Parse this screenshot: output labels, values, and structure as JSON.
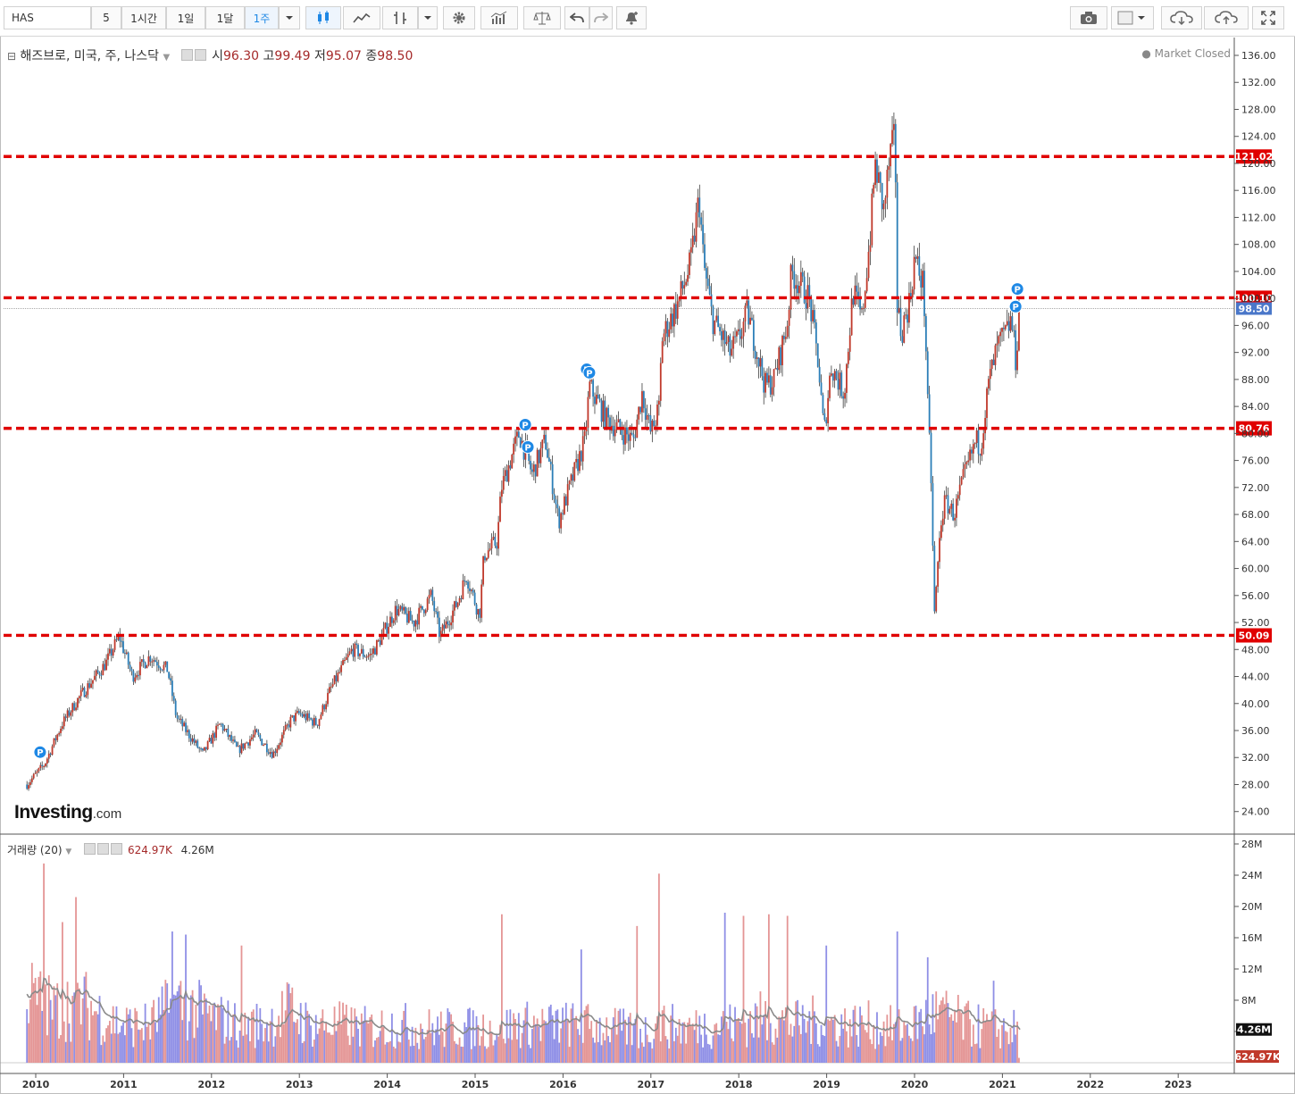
{
  "toolbar": {
    "symbol": "HAS",
    "intervals": [
      "5",
      "1시간",
      "1일",
      "1달",
      "1주"
    ],
    "selected_interval": "1주"
  },
  "legend": {
    "name": "해즈브로, 미국, 주, 나스닥",
    "open_label": "시",
    "open": "96.30",
    "high_label": "고",
    "high": "99.49",
    "low_label": "저",
    "low": "95.07",
    "close_label": "종",
    "close": "98.50",
    "market_status": "Market Closed"
  },
  "volume_legend": {
    "label": "거래량 (20)",
    "value": "624.97K",
    "ma_value": "4.26M"
  },
  "logo": {
    "main": "Investing",
    "suffix": ".com"
  },
  "colors": {
    "up": "#c0392b",
    "down": "#2c7fb8",
    "level_line": "#e00000",
    "price_tag": "#4a77c9",
    "vol_up": "#e49595",
    "vol_down": "#8f8fe6",
    "marker": "#1e88e5"
  },
  "chart_data": [
    {
      "type": "candlestick",
      "title": "해즈브로, 미국, 주, 나스닥",
      "x_range": [
        2009.9,
        2023.6
      ],
      "y_range": [
        21.5,
        138
      ],
      "y_ticks": [
        "24.00",
        "28.00",
        "32.00",
        "36.00",
        "40.00",
        "44.00",
        "48.00",
        "52.00",
        "56.00",
        "60.00",
        "64.00",
        "68.00",
        "72.00",
        "76.00",
        "80.00",
        "84.00",
        "88.00",
        "92.00",
        "96.00",
        "100.00",
        "104.00",
        "108.00",
        "112.00",
        "116.00",
        "120.00",
        "124.00",
        "128.00",
        "132.00",
        "136.00"
      ],
      "x_ticks": [
        "2010",
        "2011",
        "2012",
        "2013",
        "2014",
        "2015",
        "2016",
        "2017",
        "2018",
        "2019",
        "2020",
        "2021",
        "2022",
        "2023"
      ],
      "price_path": [
        [
          2009.9,
          28.0
        ],
        [
          2010.1,
          31.0
        ],
        [
          2010.3,
          37.0
        ],
        [
          2010.5,
          41.0
        ],
        [
          2010.8,
          46.0
        ],
        [
          2010.95,
          50.0
        ],
        [
          2011.1,
          44.0
        ],
        [
          2011.3,
          47.0
        ],
        [
          2011.5,
          45.0
        ],
        [
          2011.6,
          38.0
        ],
        [
          2011.9,
          32.5
        ],
        [
          2012.1,
          37.0
        ],
        [
          2012.3,
          33.0
        ],
        [
          2012.5,
          35.5
        ],
        [
          2012.7,
          32.5
        ],
        [
          2012.9,
          37.5
        ],
        [
          2013.0,
          38.5
        ],
        [
          2013.2,
          37.0
        ],
        [
          2013.35,
          42.0
        ],
        [
          2013.6,
          48.0
        ],
        [
          2013.8,
          47.0
        ],
        [
          2013.9,
          49.0
        ],
        [
          2014.1,
          54.0
        ],
        [
          2014.3,
          52.0
        ],
        [
          2014.5,
          56.0
        ],
        [
          2014.6,
          50.0
        ],
        [
          2014.8,
          55.0
        ],
        [
          2014.9,
          59.0
        ],
        [
          2015.05,
          53.0
        ],
        [
          2015.1,
          62.0
        ],
        [
          2015.25,
          64.0
        ],
        [
          2015.3,
          72.0
        ],
        [
          2015.5,
          80.0
        ],
        [
          2015.65,
          74.0
        ],
        [
          2015.8,
          79.0
        ],
        [
          2015.95,
          67.0
        ],
        [
          2016.1,
          73.0
        ],
        [
          2016.25,
          79.0
        ],
        [
          2016.3,
          87.0
        ],
        [
          2016.5,
          82.0
        ],
        [
          2016.8,
          79.0
        ],
        [
          2016.9,
          86.0
        ],
        [
          2017.0,
          80.0
        ],
        [
          2017.1,
          84.0
        ],
        [
          2017.12,
          94.0
        ],
        [
          2017.3,
          99.0
        ],
        [
          2017.45,
          105.0
        ],
        [
          2017.55,
          115.0
        ],
        [
          2017.6,
          105.0
        ],
        [
          2017.7,
          97.0
        ],
        [
          2017.9,
          92.0
        ],
        [
          2018.0,
          94.0
        ],
        [
          2018.1,
          98.0
        ],
        [
          2018.3,
          87.0
        ],
        [
          2018.4,
          88.0
        ],
        [
          2018.55,
          96.0
        ],
        [
          2018.6,
          104.0
        ],
        [
          2018.8,
          100.0
        ],
        [
          2018.9,
          91.0
        ],
        [
          2018.97,
          80.0
        ],
        [
          2019.05,
          90.0
        ],
        [
          2019.2,
          86.0
        ],
        [
          2019.3,
          101.0
        ],
        [
          2019.4,
          97.0
        ],
        [
          2019.5,
          110.0
        ],
        [
          2019.55,
          120.0
        ],
        [
          2019.65,
          113.0
        ],
        [
          2019.72,
          121.0
        ],
        [
          2019.78,
          124.0
        ],
        [
          2019.8,
          99.0
        ],
        [
          2019.85,
          95.0
        ],
        [
          2019.95,
          100.0
        ],
        [
          2020.0,
          106.0
        ],
        [
          2020.1,
          102.0
        ],
        [
          2020.13,
          93.0
        ],
        [
          2020.15,
          84.0
        ],
        [
          2020.2,
          70.0
        ],
        [
          2020.22,
          52.0
        ],
        [
          2020.3,
          67.0
        ],
        [
          2020.35,
          70.0
        ],
        [
          2020.45,
          68.0
        ],
        [
          2020.55,
          73.0
        ],
        [
          2020.7,
          79.0
        ],
        [
          2020.75,
          78.0
        ],
        [
          2020.85,
          88.0
        ],
        [
          2020.95,
          93.0
        ],
        [
          2021.05,
          95.0
        ],
        [
          2021.1,
          97.0
        ],
        [
          2021.15,
          91.0
        ],
        [
          2021.2,
          98.5
        ]
      ],
      "levels": [
        121.02,
        100.1,
        80.76,
        50.09
      ],
      "level_labels": [
        "121.02",
        "100.10",
        "80.76",
        "50.09"
      ],
      "last_price": 98.5,
      "last_price_label": "98.50",
      "dividend_markers": [
        [
          2010.05,
          32.8
        ],
        [
          2015.57,
          81.3
        ],
        [
          2015.6,
          78.0
        ],
        [
          2016.27,
          89.5
        ],
        [
          2016.3,
          89.0
        ],
        [
          2021.17,
          101.4
        ],
        [
          2021.15,
          98.8
        ]
      ]
    },
    {
      "type": "bar",
      "title": "거래량 (20)",
      "y_range": [
        0,
        28
      ],
      "y_ticks": [
        "28M",
        "24M",
        "20M",
        "16M",
        "12M",
        "8M",
        "4M"
      ],
      "y_unit": "M",
      "last_volume": 0.62497,
      "last_volume_label": "624.97K",
      "ma_value": 4.26,
      "ma_value_label": "4.26M",
      "volume_profile": [
        [
          2009.9,
          9
        ],
        [
          2010.2,
          7
        ],
        [
          2010.5,
          8
        ],
        [
          2010.8,
          6
        ],
        [
          2011.0,
          5
        ],
        [
          2011.3,
          5
        ],
        [
          2011.6,
          8
        ],
        [
          2011.8,
          7
        ],
        [
          2012.0,
          6
        ],
        [
          2012.3,
          5
        ],
        [
          2012.6,
          5
        ],
        [
          2012.9,
          7
        ],
        [
          2013.1,
          5
        ],
        [
          2013.5,
          5
        ],
        [
          2013.8,
          4.5
        ],
        [
          2014.1,
          5
        ],
        [
          2014.5,
          4.5
        ],
        [
          2014.9,
          4.5
        ],
        [
          2015.2,
          4.5
        ],
        [
          2015.5,
          5
        ],
        [
          2015.9,
          5
        ],
        [
          2016.2,
          5
        ],
        [
          2016.6,
          4.5
        ],
        [
          2016.9,
          4
        ],
        [
          2017.1,
          5
        ],
        [
          2017.4,
          4.5
        ],
        [
          2017.7,
          5
        ],
        [
          2018.0,
          5
        ],
        [
          2018.3,
          6
        ],
        [
          2018.6,
          5
        ],
        [
          2018.9,
          5.5
        ],
        [
          2019.2,
          5
        ],
        [
          2019.5,
          5
        ],
        [
          2019.8,
          4.5
        ],
        [
          2020.0,
          5
        ],
        [
          2020.2,
          6.5
        ],
        [
          2020.4,
          6
        ],
        [
          2020.6,
          5
        ],
        [
          2020.9,
          4.5
        ],
        [
          2021.2,
          4.3
        ]
      ],
      "spikes": [
        [
          2010.1,
          25.5
        ],
        [
          2010.45,
          21.2
        ],
        [
          2010.3,
          18
        ],
        [
          2011.55,
          16.8
        ],
        [
          2011.7,
          16.4
        ],
        [
          2012.35,
          15
        ],
        [
          2015.3,
          19
        ],
        [
          2016.2,
          14.5
        ],
        [
          2016.85,
          17.5
        ],
        [
          2017.1,
          24.2
        ],
        [
          2017.85,
          19.2
        ],
        [
          2018.05,
          18.8
        ],
        [
          2018.35,
          19.0
        ],
        [
          2018.55,
          18.8
        ],
        [
          2019.0,
          15
        ],
        [
          2019.8,
          16.8
        ],
        [
          2020.15,
          13.5
        ],
        [
          2020.9,
          10.5
        ]
      ]
    }
  ]
}
